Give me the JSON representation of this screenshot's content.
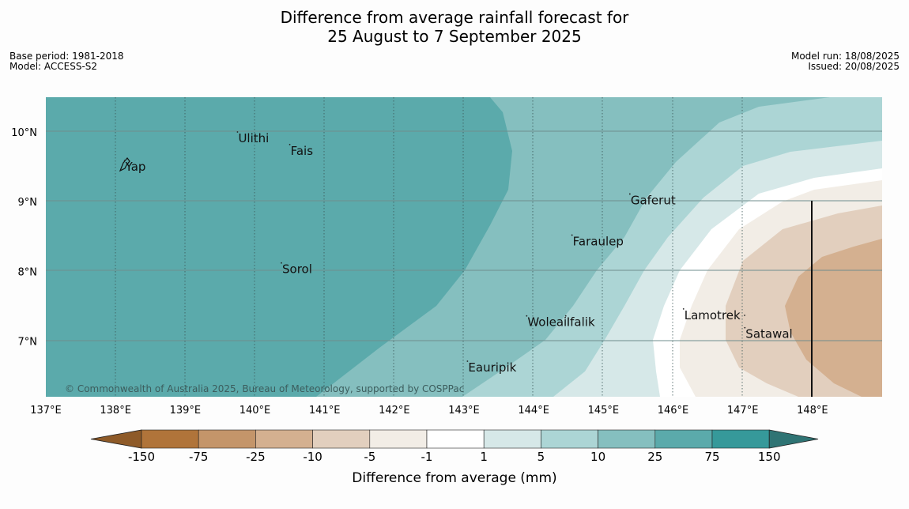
{
  "title": {
    "line1": "Difference from average rainfall forecast for",
    "line2": "25 August to 7 September 2025"
  },
  "meta": {
    "base_period": "Base period: 1981-2018",
    "model": "Model: ACCESS-S2",
    "model_run": "Model run: 18/08/2025",
    "issued": "Issued: 20/08/2025"
  },
  "map": {
    "lon_range": [
      137,
      149
    ],
    "lat_range": [
      6.2,
      10.5
    ],
    "lon_ticks": [
      "137°E",
      "138°E",
      "139°E",
      "140°E",
      "141°E",
      "142°E",
      "143°E",
      "144°E",
      "145°E",
      "146°E",
      "147°E",
      "148°E"
    ],
    "lat_ticks": [
      "7°N",
      "8°N",
      "9°N",
      "10°N"
    ],
    "copyright": "© Commonwealth of Australia 2025, Bureau of Meteorology, supported by COSPPac",
    "places": [
      {
        "name": "Ulithi",
        "lon": 139.75,
        "lat": 9.91
      },
      {
        "name": "Fais",
        "lon": 140.5,
        "lat": 9.73
      },
      {
        "name": "Yap",
        "lon": 138.13,
        "lat": 9.5
      },
      {
        "name": "Gaferut",
        "lon": 145.38,
        "lat": 9.02
      },
      {
        "name": "Faraulep",
        "lon": 144.55,
        "lat": 8.43
      },
      {
        "name": "Sorol",
        "lon": 140.38,
        "lat": 8.03
      },
      {
        "name": "Lamotrek",
        "lon": 146.15,
        "lat": 7.37
      },
      {
        "name": "Woleai",
        "lon": 143.9,
        "lat": 7.27
      },
      {
        "name": "Ifalik",
        "lon": 144.46,
        "lat": 7.27
      },
      {
        "name": "Satawal",
        "lon": 147.03,
        "lat": 7.1
      },
      {
        "name": "Eauripik",
        "lon": 143.05,
        "lat": 6.62
      }
    ]
  },
  "legend": {
    "title": "Difference from average (mm)",
    "ticks": [
      "-150",
      "-75",
      "-25",
      "-10",
      "-5",
      "-1",
      "1",
      "5",
      "10",
      "25",
      "75",
      "150"
    ],
    "colors": {
      "below_-150": "#8e5a28",
      "-150_-75": "#b0743a",
      "-75_-25": "#c4956a",
      "-25_-10": "#d4b090",
      "-10_-5": "#e2cfbe",
      "-5_-1": "#f2ede6",
      "-1_1": "#ffffff",
      "1_5": "#d6e8e8",
      "5_10": "#acd5d5",
      "10_25": "#85bfbf",
      "25_75": "#5baaab",
      "75_150": "#36999a",
      "above_150": "#2f7474"
    }
  }
}
